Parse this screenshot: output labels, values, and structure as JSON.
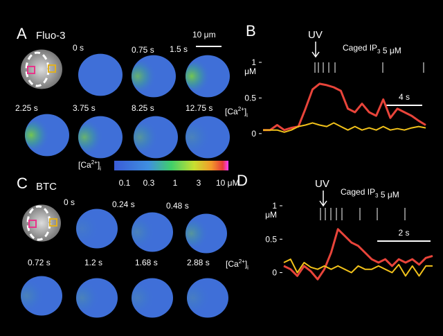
{
  "panels": {
    "a": {
      "letter": "A",
      "dye": "Fluo-3",
      "scale": "10 μm",
      "times": [
        "0 s",
        "0.75 s",
        "1.5 s",
        "2.25 s",
        "3.75 s",
        "8.25 s",
        "12.75 s"
      ]
    },
    "colorbar": {
      "label": {
        "base": "[Ca",
        "sup": "2+",
        "end": "]",
        "sub": "i"
      },
      "ticks": [
        "0.1",
        "0.3",
        "1",
        "3",
        "10 μM"
      ]
    },
    "c": {
      "letter": "C",
      "dye": "BTC",
      "times": [
        "0 s",
        "0.24 s",
        "0.48 s",
        "0.72 s",
        "1.2 s",
        "1.68 s",
        "2.88 s"
      ]
    }
  },
  "chart_data": [
    {
      "type": "line",
      "letter": "B",
      "stimulus": "UV",
      "caged": {
        "base": "Caged IP",
        "sub": "3",
        "end": " 5 μM"
      },
      "y_label": {
        "base": "[Ca",
        "sup": "2+",
        "end": "]",
        "sub": "i"
      },
      "y_unit": "μM",
      "scale_bar": "4 s",
      "ylim": [
        -0.05,
        1
      ],
      "yticks": [
        0,
        0.5,
        1
      ],
      "series": [
        {
          "color": "#e8443a",
          "values": [
            0.05,
            0.05,
            0.12,
            0.05,
            0.08,
            0.1,
            0.35,
            0.62,
            0.7,
            0.68,
            0.65,
            0.6,
            0.35,
            0.3,
            0.42,
            0.3,
            0.25,
            0.48,
            0.22,
            0.35,
            0.3,
            0.25,
            0.18,
            0.12
          ]
        },
        {
          "color": "#f2c21a",
          "values": [
            0.05,
            0.05,
            0.05,
            0.02,
            0.05,
            0.1,
            0.12,
            0.15,
            0.12,
            0.1,
            0.15,
            0.1,
            0.05,
            0.1,
            0.05,
            0.08,
            0.05,
            0.1,
            0.05,
            0.07,
            0.05,
            0.08,
            0.1,
            0.08
          ]
        }
      ]
    },
    {
      "type": "line",
      "letter": "D",
      "stimulus": "UV",
      "caged": {
        "base": "Caged IP",
        "sub": "3",
        "end": " 5 μM"
      },
      "y_label": {
        "base": "[Ca",
        "sup": "2+",
        "end": "]",
        "sub": "i"
      },
      "y_unit": "μM",
      "scale_bar": "2 s",
      "ylim": [
        -0.15,
        1
      ],
      "yticks": [
        0,
        0.5,
        1
      ],
      "series": [
        {
          "color": "#e8443a",
          "values": [
            0.1,
            0.05,
            -0.05,
            0.1,
            0.02,
            -0.1,
            0.05,
            0.3,
            0.65,
            0.55,
            0.45,
            0.4,
            0.3,
            0.2,
            0.15,
            0.2,
            0.1,
            0.2,
            0.15,
            0.2,
            0.12,
            0.22,
            0.25
          ]
        },
        {
          "color": "#f2c21a",
          "values": [
            0.15,
            0.2,
            0,
            0.15,
            0.08,
            0.05,
            0.1,
            0.05,
            0.1,
            0.05,
            0,
            0.1,
            0.05,
            0.05,
            0.1,
            0.05,
            0,
            0.12,
            -0.05,
            0.1,
            -0.05,
            0.1,
            0.1
          ]
        }
      ]
    }
  ]
}
